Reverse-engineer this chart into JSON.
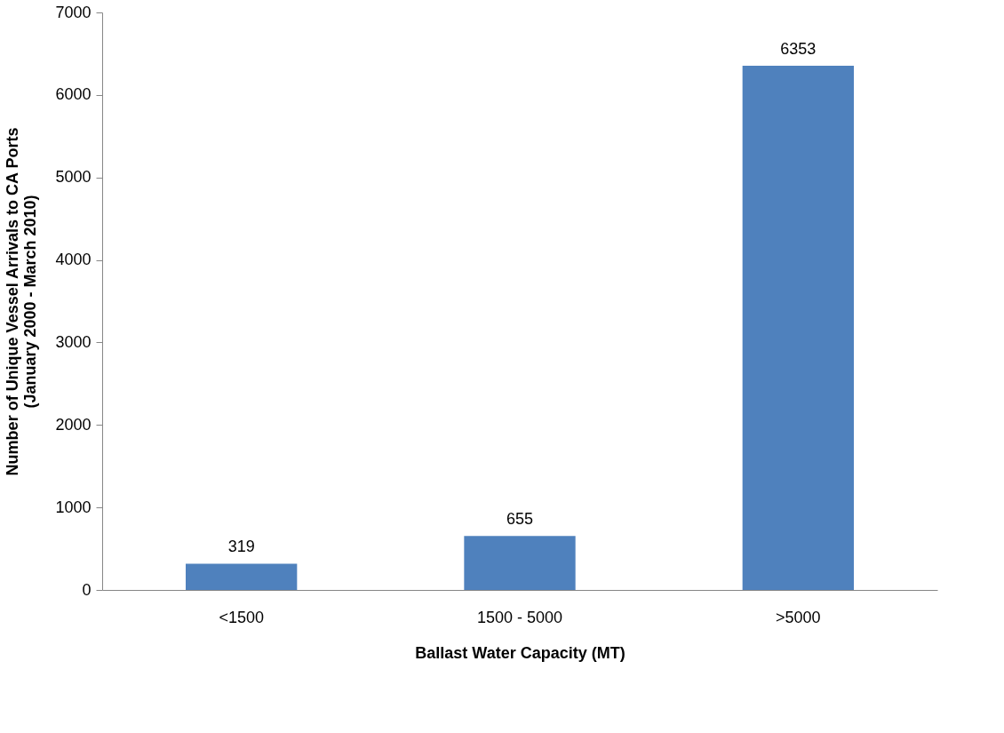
{
  "chart_data": {
    "type": "bar",
    "xlabel": "Ballast Water Capacity (MT)",
    "ylabel": "Number of Unique Vessel Arrivals to CA Ports\n(January 2000 - March 2010)",
    "categories": [
      "<1500",
      "1500 - 5000",
      ">5000"
    ],
    "values": [
      319,
      655,
      6353
    ],
    "color": "#4f81bd",
    "ylim": [
      0,
      7000
    ],
    "yticks": [
      0,
      1000,
      2000,
      3000,
      4000,
      5000,
      6000,
      7000
    ],
    "grid": false,
    "data_labels": true
  }
}
